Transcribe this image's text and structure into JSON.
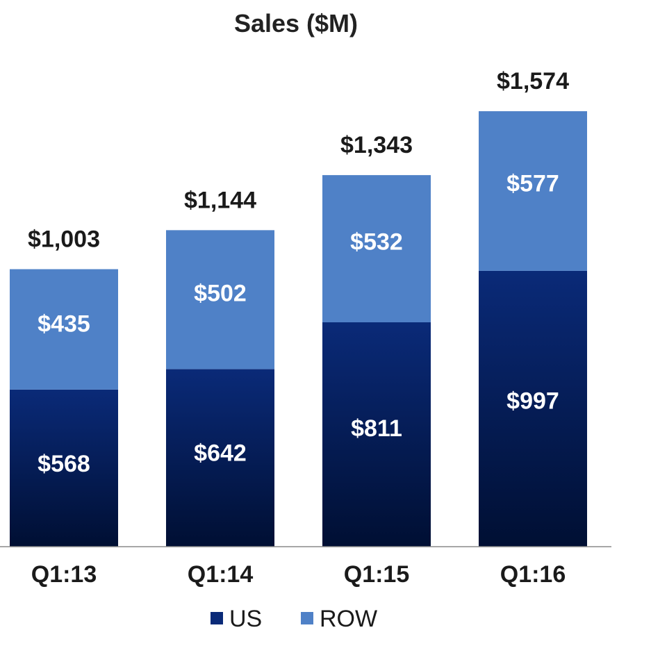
{
  "chart_data": {
    "type": "bar",
    "stacked": true,
    "title": "Sales ($M)",
    "categories": [
      "Q1:13",
      "Q1:14",
      "Q1:15",
      "Q1:16"
    ],
    "series": [
      {
        "name": "US",
        "values": [
          568,
          642,
          811,
          997
        ],
        "labels": [
          "$568",
          "$642",
          "$811",
          "$997"
        ],
        "color": "#0a2466"
      },
      {
        "name": "ROW",
        "values": [
          435,
          502,
          532,
          577
        ],
        "labels": [
          "$435",
          "$502",
          "$532",
          "$577"
        ],
        "color": "#4f81c7"
      }
    ],
    "totals": [
      1003,
      1144,
      1343,
      1574
    ],
    "total_labels": [
      "$1,003",
      "$1,144",
      "$1,343",
      "$1,574"
    ],
    "ylim": [
      0,
      1750
    ],
    "xlabel": "",
    "ylabel": "",
    "grid": false,
    "legend": "bottom",
    "colors": {
      "us_dark": "#000f33",
      "us_light": "#0a2a78",
      "row": "#4f81c7",
      "axis": "#8a8a8a",
      "text": "#1a1a1a",
      "inner_label": "#ffffff"
    }
  }
}
